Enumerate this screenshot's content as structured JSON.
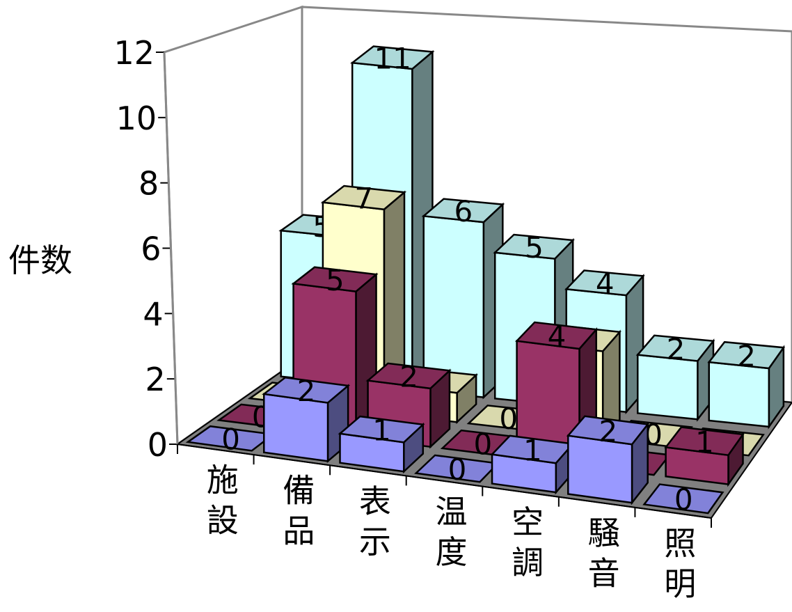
{
  "chart_data": {
    "type": "bar",
    "variant": "3d-clustered-depth",
    "categories": [
      "施設",
      "備品",
      "表示",
      "温度",
      "空調",
      "騒音",
      "照明"
    ],
    "series": [
      {
        "values": [
          0,
          2,
          1,
          0,
          1,
          2,
          0
        ],
        "color": "#9999FF"
      },
      {
        "values": [
          0,
          5,
          2,
          0,
          4,
          0,
          1
        ],
        "color": "#993366"
      },
      {
        "values": [
          0,
          7,
          1,
          0,
          3,
          0,
          0
        ],
        "color": "#FFFFCC"
      },
      {
        "values": [
          5,
          11,
          6,
          5,
          4,
          2,
          2
        ],
        "color": "#CCFFFF"
      }
    ],
    "ylabel": "件数",
    "ylim": [
      0,
      12
    ],
    "yticks": [
      0,
      2,
      4,
      6,
      8,
      10,
      12
    ],
    "floor_color": "#808080",
    "data_labels": true
  }
}
